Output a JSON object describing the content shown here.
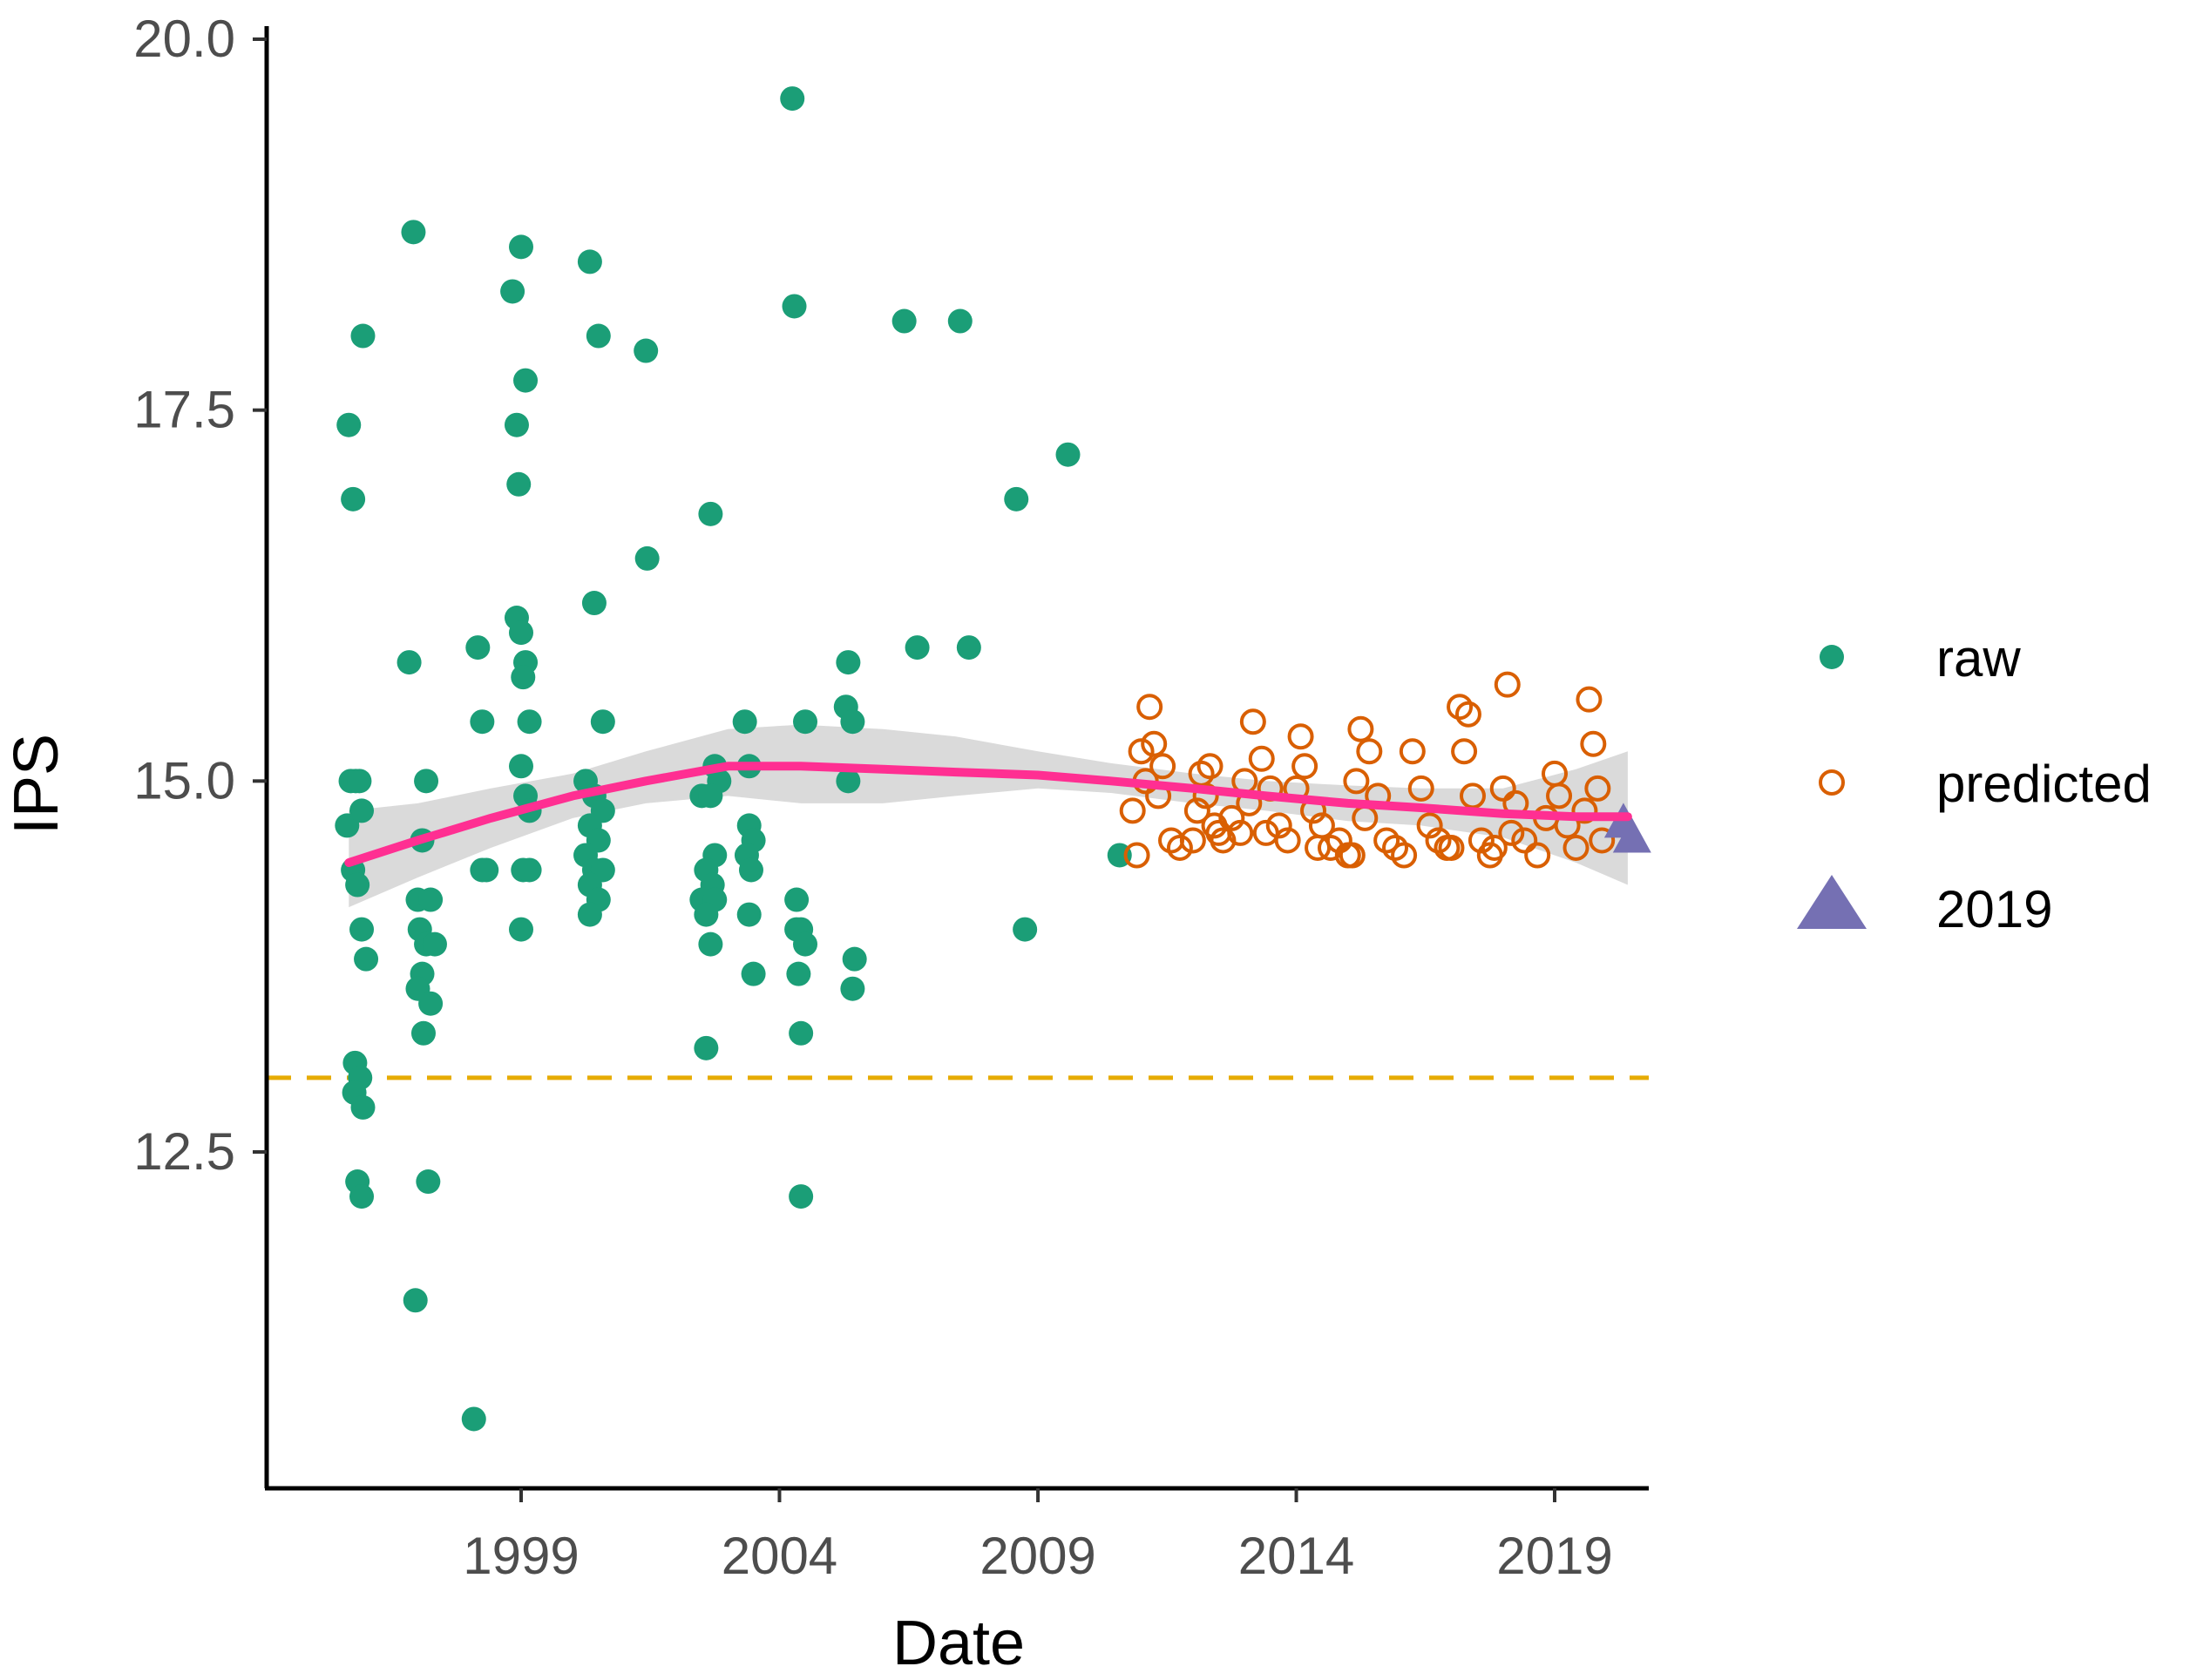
{
  "chart_data": {
    "type": "scatter",
    "xlabel": "Date",
    "ylabel": "IPS",
    "xlim": [
      "1994-01-01",
      "2020-10-01"
    ],
    "ylim": [
      10.3,
      20.2
    ],
    "x_ticks": [
      {
        "date": "1999-01-01",
        "label": "1999"
      },
      {
        "date": "2004-01-01",
        "label": "2004"
      },
      {
        "date": "2009-01-01",
        "label": "2009"
      },
      {
        "date": "2014-01-01",
        "label": "2014"
      },
      {
        "date": "2019-01-01",
        "label": "2019"
      }
    ],
    "y_ticks": [
      {
        "value": 12.5,
        "label": "12.5"
      },
      {
        "value": 15.0,
        "label": "15.0"
      },
      {
        "value": 17.5,
        "label": "17.5"
      },
      {
        "value": 20.0,
        "label": "20.0"
      }
    ],
    "reference_line": {
      "y": 13.0,
      "style": "dashed",
      "color": "#E6AB02"
    },
    "legend": {
      "position": "right",
      "entries": [
        {
          "label": "raw",
          "shape": "filled-circle",
          "color": "#1B9E77"
        },
        {
          "label": "predicted",
          "shape": "open-circle",
          "color": "#D95F02"
        },
        {
          "label": "2019",
          "shape": "filled-triangle",
          "color": "#7570B3"
        }
      ]
    },
    "series": [
      {
        "name": "raw",
        "color": "#1B9E77",
        "marker": "filled-circle",
        "points": [
          [
            "1995-09-01",
            17.4
          ],
          [
            "1995-10-01",
            16.9
          ],
          [
            "1995-09-15",
            15.0
          ],
          [
            "1995-10-20",
            15.0
          ],
          [
            "1995-11-15",
            15.0
          ],
          [
            "1995-08-20",
            14.7
          ],
          [
            "1995-12-01",
            14.8
          ],
          [
            "1995-10-01",
            14.4
          ],
          [
            "1995-11-01",
            14.3
          ],
          [
            "1995-12-01",
            14.0
          ],
          [
            "1996-01-01",
            13.8
          ],
          [
            "1995-10-15",
            13.1
          ],
          [
            "1995-11-20",
            13.0
          ],
          [
            "1995-10-10",
            12.9
          ],
          [
            "1995-12-10",
            12.8
          ],
          [
            "1995-11-01",
            12.3
          ],
          [
            "1995-12-01",
            12.2
          ],
          [
            "1995-12-10",
            18.0
          ],
          [
            "1996-12-01",
            18.7
          ],
          [
            "1996-11-01",
            15.8
          ],
          [
            "1997-03-01",
            15.0
          ],
          [
            "1997-02-01",
            14.6
          ],
          [
            "1997-01-01",
            14.2
          ],
          [
            "1997-04-01",
            14.2
          ],
          [
            "1997-01-15",
            14.0
          ],
          [
            "1997-03-01",
            13.9
          ],
          [
            "1997-05-01",
            13.9
          ],
          [
            "1997-02-01",
            13.7
          ],
          [
            "1997-01-01",
            13.6
          ],
          [
            "1997-04-01",
            13.5
          ],
          [
            "1997-02-10",
            13.3
          ],
          [
            "1997-03-15",
            12.3
          ],
          [
            "1996-12-15",
            11.5
          ],
          [
            "1998-02-01",
            10.7
          ],
          [
            "1998-03-01",
            15.9
          ],
          [
            "1998-04-01",
            15.4
          ],
          [
            "1998-05-01",
            14.4
          ],
          [
            "1998-04-01",
            14.4
          ],
          [
            "1998-11-01",
            18.3
          ],
          [
            "1999-01-01",
            18.6
          ],
          [
            "1999-02-01",
            17.7
          ],
          [
            "1998-12-01",
            17.4
          ],
          [
            "1998-12-15",
            17.0
          ],
          [
            "1998-12-01",
            16.1
          ],
          [
            "1999-01-01",
            16.0
          ],
          [
            "1999-02-01",
            15.8
          ],
          [
            "1999-01-15",
            15.7
          ],
          [
            "1999-03-01",
            15.4
          ],
          [
            "1999-01-01",
            15.1
          ],
          [
            "1999-02-01",
            14.9
          ],
          [
            "1999-03-01",
            14.8
          ],
          [
            "1999-01-15",
            14.4
          ],
          [
            "1999-03-01",
            14.4
          ],
          [
            "1999-01-01",
            14.0
          ],
          [
            "2000-05-01",
            18.5
          ],
          [
            "2000-07-01",
            18.0
          ],
          [
            "2000-06-01",
            16.2
          ],
          [
            "2000-08-01",
            15.4
          ],
          [
            "2000-04-01",
            15.0
          ],
          [
            "2000-06-01",
            14.9
          ],
          [
            "2000-08-01",
            14.8
          ],
          [
            "2000-05-01",
            14.7
          ],
          [
            "2000-07-01",
            14.6
          ],
          [
            "2000-04-01",
            14.5
          ],
          [
            "2000-06-01",
            14.4
          ],
          [
            "2000-08-01",
            14.4
          ],
          [
            "2000-05-01",
            14.3
          ],
          [
            "2000-07-01",
            14.2
          ],
          [
            "2000-05-01",
            14.1
          ],
          [
            "2001-06-01",
            17.9
          ],
          [
            "2001-06-10",
            16.5
          ],
          [
            "2002-09-01",
            16.8
          ],
          [
            "2002-10-01",
            15.1
          ],
          [
            "2002-11-01",
            15.0
          ],
          [
            "2002-07-01",
            14.9
          ],
          [
            "2002-09-01",
            14.9
          ],
          [
            "2002-10-01",
            14.5
          ],
          [
            "2002-08-01",
            14.4
          ],
          [
            "2002-09-15",
            14.3
          ],
          [
            "2002-07-01",
            14.2
          ],
          [
            "2002-10-01",
            14.2
          ],
          [
            "2002-08-01",
            14.1
          ],
          [
            "2002-09-01",
            13.9
          ],
          [
            "2002-08-01",
            13.2
          ],
          [
            "2003-05-01",
            15.4
          ],
          [
            "2003-06-01",
            15.1
          ],
          [
            "2003-06-01",
            14.7
          ],
          [
            "2003-07-01",
            14.6
          ],
          [
            "2003-05-15",
            14.5
          ],
          [
            "2003-06-15",
            14.4
          ],
          [
            "2003-06-01",
            14.1
          ],
          [
            "2003-07-01",
            13.7
          ],
          [
            "2004-04-01",
            19.6
          ],
          [
            "2004-04-15",
            18.2
          ],
          [
            "2004-07-01",
            15.4
          ],
          [
            "2004-05-01",
            14.2
          ],
          [
            "2004-05-01",
            14.0
          ],
          [
            "2004-06-01",
            14.0
          ],
          [
            "2004-07-01",
            13.9
          ],
          [
            "2004-05-15",
            13.7
          ],
          [
            "2004-06-01",
            13.3
          ],
          [
            "2004-06-01",
            12.2
          ],
          [
            "2005-05-01",
            15.8
          ],
          [
            "2005-04-15",
            15.5
          ],
          [
            "2005-06-01",
            15.4
          ],
          [
            "2005-05-01",
            15.0
          ],
          [
            "2005-06-15",
            13.8
          ],
          [
            "2005-06-01",
            13.6
          ],
          [
            "2006-06-01",
            18.1
          ],
          [
            "2006-09-01",
            15.9
          ],
          [
            "2007-07-01",
            18.1
          ],
          [
            "2007-09-01",
            15.9
          ],
          [
            "2008-08-01",
            16.9
          ],
          [
            "2008-10-01",
            14.0
          ],
          [
            "2009-08-01",
            17.2
          ],
          [
            "2010-08-01",
            14.5
          ]
        ]
      },
      {
        "name": "predicted",
        "color": "#D95F02",
        "marker": "open-circle",
        "points": [
          [
            "2011-03-01",
            15.5
          ],
          [
            "2011-01-01",
            15.2
          ],
          [
            "2011-04-01",
            15.25
          ],
          [
            "2011-06-01",
            15.1
          ],
          [
            "2010-11-01",
            14.8
          ],
          [
            "2011-02-01",
            15.0
          ],
          [
            "2011-05-01",
            14.9
          ],
          [
            "2010-12-01",
            14.5
          ],
          [
            "2011-08-01",
            14.6
          ],
          [
            "2011-10-01",
            14.55
          ],
          [
            "2012-01-01",
            14.6
          ],
          [
            "2012-03-01",
            15.05
          ],
          [
            "2012-05-01",
            15.1
          ],
          [
            "2012-02-01",
            14.8
          ],
          [
            "2012-06-01",
            14.7
          ],
          [
            "2012-04-01",
            14.9
          ],
          [
            "2012-08-01",
            14.6
          ],
          [
            "2012-10-01",
            14.75
          ],
          [
            "2012-12-01",
            14.65
          ],
          [
            "2013-03-01",
            15.4
          ],
          [
            "2013-01-01",
            15.0
          ],
          [
            "2013-05-01",
            15.15
          ],
          [
            "2013-07-01",
            14.95
          ],
          [
            "2013-02-01",
            14.85
          ],
          [
            "2013-09-01",
            14.7
          ],
          [
            "2013-11-01",
            14.6
          ],
          [
            "2014-02-01",
            15.3
          ],
          [
            "2014-03-01",
            15.1
          ],
          [
            "2014-01-01",
            14.95
          ],
          [
            "2014-05-01",
            14.8
          ],
          [
            "2014-07-01",
            14.7
          ],
          [
            "2014-09-01",
            14.55
          ],
          [
            "2014-11-01",
            14.6
          ],
          [
            "2015-01-01",
            14.5
          ],
          [
            "2015-04-01",
            15.35
          ],
          [
            "2015-06-01",
            15.2
          ],
          [
            "2015-03-01",
            15.0
          ],
          [
            "2015-08-01",
            14.9
          ],
          [
            "2015-05-01",
            14.75
          ],
          [
            "2015-10-01",
            14.6
          ],
          [
            "2015-12-01",
            14.55
          ],
          [
            "2016-02-01",
            14.5
          ],
          [
            "2016-04-01",
            15.2
          ],
          [
            "2016-06-01",
            14.95
          ],
          [
            "2016-08-01",
            14.7
          ],
          [
            "2016-10-01",
            14.6
          ],
          [
            "2017-01-01",
            14.55
          ],
          [
            "2017-03-01",
            15.5
          ],
          [
            "2017-05-01",
            15.45
          ],
          [
            "2017-04-01",
            15.2
          ],
          [
            "2017-06-01",
            14.9
          ],
          [
            "2017-08-01",
            14.6
          ],
          [
            "2017-10-01",
            14.5
          ],
          [
            "2018-02-01",
            15.65
          ],
          [
            "2018-01-01",
            14.95
          ],
          [
            "2018-04-01",
            14.85
          ],
          [
            "2018-06-01",
            14.6
          ],
          [
            "2018-09-01",
            14.5
          ],
          [
            "2018-11-01",
            14.75
          ],
          [
            "2019-01-01",
            15.05
          ],
          [
            "2019-02-01",
            14.9
          ],
          [
            "2019-04-01",
            14.7
          ],
          [
            "2019-06-01",
            14.55
          ],
          [
            "2019-09-01",
            15.55
          ],
          [
            "2019-10-01",
            15.25
          ],
          [
            "2019-11-01",
            14.95
          ],
          [
            "2019-08-01",
            14.8
          ],
          [
            "2019-12-01",
            14.6
          ],
          [
            "2014-06-01",
            14.55
          ],
          [
            "2015-02-01",
            14.5
          ],
          [
            "2016-12-01",
            14.55
          ],
          [
            "2018-03-01",
            14.65
          ],
          [
            "2017-11-01",
            14.55
          ],
          [
            "2013-06-01",
            14.65
          ],
          [
            "2012-07-01",
            14.65
          ]
        ]
      },
      {
        "name": "2019",
        "color": "#7570B3",
        "marker": "filled-triangle",
        "points": [
          [
            "2020-05-01",
            14.7
          ],
          [
            "2020-07-01",
            14.6
          ]
        ]
      }
    ],
    "smooth": {
      "color": "#FF2F92",
      "band_color": "#D3D3D3",
      "points": [
        [
          "1995-09-01",
          14.45,
          14.15,
          14.8
        ],
        [
          "1997-01-01",
          14.6,
          14.35,
          14.85
        ],
        [
          "1998-06-01",
          14.75,
          14.55,
          14.95
        ],
        [
          "2000-01-01",
          14.9,
          14.75,
          15.05
        ],
        [
          "2001-06-01",
          15.0,
          14.85,
          15.2
        ],
        [
          "2003-01-01",
          15.1,
          14.9,
          15.35
        ],
        [
          "2004-06-01",
          15.1,
          14.85,
          15.38
        ],
        [
          "2006-01-01",
          15.08,
          14.85,
          15.35
        ],
        [
          "2007-06-01",
          15.06,
          14.9,
          15.3
        ],
        [
          "2009-01-01",
          15.04,
          14.95,
          15.2
        ],
        [
          "2010-06-01",
          15.0,
          14.92,
          15.12
        ],
        [
          "2012-01-01",
          14.95,
          14.85,
          15.05
        ],
        [
          "2013-06-01",
          14.9,
          14.8,
          15.0
        ],
        [
          "2015-01-01",
          14.85,
          14.73,
          14.97
        ],
        [
          "2016-06-01",
          14.82,
          14.7,
          14.95
        ],
        [
          "2018-01-01",
          14.78,
          14.62,
          14.95
        ],
        [
          "2019-06-01",
          14.76,
          14.45,
          15.08
        ],
        [
          "2020-06-01",
          14.76,
          14.3,
          15.2
        ]
      ]
    }
  }
}
